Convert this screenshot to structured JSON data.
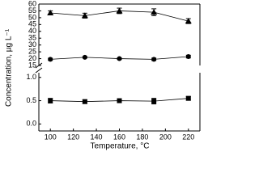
{
  "chart_data": {
    "type": "line",
    "x_label": "Temperature, °C",
    "y_label": "Concentration, µg L⁻¹",
    "x": [
      100,
      130,
      160,
      190,
      220
    ],
    "xlim": [
      90,
      230
    ],
    "xticks": [
      100,
      120,
      140,
      160,
      180,
      200,
      220
    ],
    "y_segments": [
      {
        "ylim": [
          -0.15,
          1.1
        ],
        "yticks": [
          {
            "value": 0,
            "label": "0.0"
          },
          {
            "value": 0.5,
            "label": "0.5"
          },
          {
            "value": 1,
            "label": "1.0"
          }
        ]
      },
      {
        "ylim": [
          15,
          60
        ],
        "yticks": [
          15,
          20,
          25,
          30,
          35,
          40,
          45,
          50,
          55,
          60
        ]
      }
    ],
    "series": [
      {
        "marker": "triangle",
        "color": "#000000",
        "segment": 1,
        "values": [
          53.5,
          51.5,
          55,
          54,
          47.5
        ],
        "errors": [
          1.5,
          1.8,
          2,
          2.5,
          1.8
        ]
      },
      {
        "marker": "circle",
        "color": "#000000",
        "segment": 1,
        "values": [
          19.5,
          21,
          20,
          19.5,
          21.5
        ],
        "errors": [
          0.8,
          0.5,
          0.6,
          0.9,
          1
        ]
      },
      {
        "marker": "square",
        "color": "#000000",
        "segment": 0,
        "values": [
          0.5,
          0.48,
          0.5,
          0.49,
          0.55
        ],
        "errors": [
          0.05,
          0.04,
          0.03,
          0.06,
          0.04
        ]
      }
    ]
  }
}
